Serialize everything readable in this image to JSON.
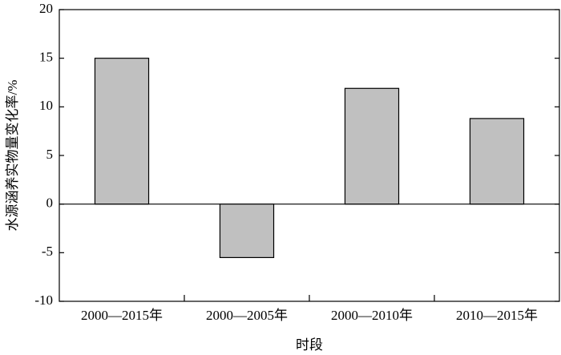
{
  "chart_data": {
    "type": "bar",
    "x_label": "时段",
    "y_label": "水源涵养实物量变化率/%",
    "categories": [
      "2000—2015年",
      "2000—2005年",
      "2000—2010年",
      "2010—2015年"
    ],
    "values": [
      15.0,
      -5.5,
      11.9,
      8.8
    ],
    "color": "#c0c0c0",
    "ylim": [
      -10,
      20
    ],
    "yticks": [
      -10,
      -5,
      0,
      5,
      10,
      15,
      20
    ],
    "grid": false
  }
}
